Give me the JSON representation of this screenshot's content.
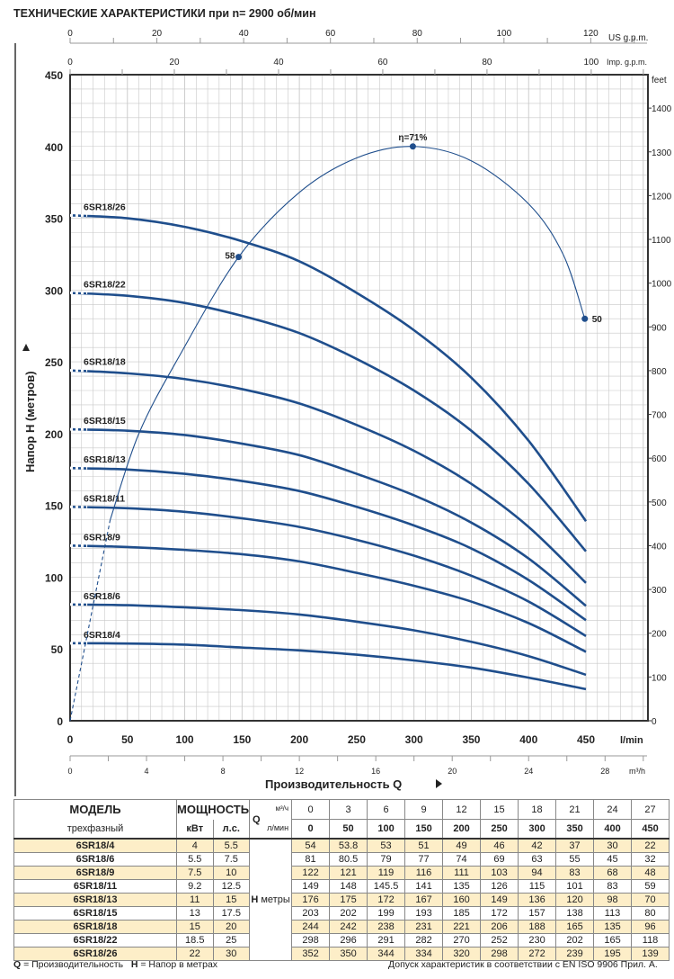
{
  "title": "ТЕХНИЧЕСКИЕ ХАРАКТЕРИСТИКИ при n= 2900 об/мин",
  "chart_data": {
    "type": "line",
    "xlabel": "Производительность Q",
    "ylabel": "Напор H  (метров)",
    "x_unit": "l/min",
    "y_unit_right": "feet",
    "xlim": [
      0,
      504
    ],
    "ylim": [
      0,
      450
    ],
    "x_ticks": [
      0,
      50,
      100,
      150,
      200,
      250,
      300,
      350,
      400,
      450
    ],
    "y_ticks": [
      0,
      50,
      100,
      150,
      200,
      250,
      300,
      350,
      400,
      450
    ],
    "feet_ticks": [
      0,
      100,
      200,
      300,
      400,
      500,
      600,
      700,
      800,
      900,
      1000,
      1100,
      1200,
      1300,
      1400
    ],
    "us_gpm_label": "US g.p.m.",
    "us_gpm_ticks": [
      0,
      20,
      40,
      60,
      80,
      100,
      120
    ],
    "imp_gpm_label": "Imp. g.p.m.",
    "imp_gpm_ticks": [
      0,
      20,
      40,
      60,
      80,
      100
    ],
    "m3h_label": "m³/h",
    "m3h_ticks": [
      0,
      4,
      8,
      12,
      16,
      20,
      24,
      28
    ],
    "grid": true,
    "x": [
      0,
      50,
      100,
      150,
      200,
      250,
      300,
      350,
      400,
      450
    ],
    "series": [
      {
        "name": "6SR18/4",
        "values": [
          54,
          53.8,
          53,
          51,
          49,
          46,
          42,
          37,
          30,
          22
        ]
      },
      {
        "name": "6SR18/6",
        "values": [
          81,
          80.5,
          79,
          77,
          74,
          69,
          63,
          55,
          45,
          32
        ]
      },
      {
        "name": "6SR18/9",
        "values": [
          122,
          121,
          119,
          116,
          111,
          103,
          94,
          83,
          68,
          48
        ]
      },
      {
        "name": "6SR18/11",
        "values": [
          149,
          148,
          145.5,
          141,
          135,
          126,
          115,
          101,
          83,
          59
        ]
      },
      {
        "name": "6SR18/13",
        "values": [
          176,
          175,
          172,
          167,
          160,
          149,
          136,
          120,
          98,
          70
        ]
      },
      {
        "name": "6SR18/15",
        "values": [
          203,
          202,
          199,
          193,
          185,
          172,
          157,
          138,
          113,
          80
        ]
      },
      {
        "name": "6SR18/18",
        "values": [
          244,
          242,
          238,
          231,
          221,
          206,
          188,
          165,
          135,
          96
        ]
      },
      {
        "name": "6SR18/22",
        "values": [
          298,
          296,
          291,
          282,
          270,
          252,
          230,
          202,
          165,
          118
        ]
      },
      {
        "name": "6SR18/26",
        "values": [
          352,
          350,
          344,
          334,
          320,
          298,
          272,
          239,
          195,
          139
        ]
      }
    ],
    "efficiency": {
      "curve_q": [
        0,
        15,
        35,
        60,
        96,
        147,
        200,
        250,
        299,
        350,
        400,
        430,
        449
      ],
      "curve_h": [
        0,
        60,
        140,
        200,
        255,
        323,
        368,
        392,
        400,
        390,
        360,
        325,
        280
      ],
      "points": [
        {
          "q": 147,
          "h": 323,
          "label": "58"
        },
        {
          "q": 299,
          "h": 400,
          "label": "η=71%"
        },
        {
          "q": 449,
          "h": 280,
          "label": "50"
        }
      ]
    }
  },
  "table": {
    "model_header": "МОДЕЛЬ",
    "model_sub": "трехфазный",
    "power_header": "МОЩНОСТЬ",
    "kw": "кВт",
    "hp": "л.с.",
    "q_label": "Q",
    "m3h": "м³/ч",
    "lmin": "л/мин",
    "h_label": "H",
    "h_unit": "метры",
    "m3h_values": [
      "0",
      "3",
      "6",
      "9",
      "12",
      "15",
      "18",
      "21",
      "24",
      "27"
    ],
    "lmin_values": [
      "0",
      "50",
      "100",
      "150",
      "200",
      "250",
      "300",
      "350",
      "400",
      "450"
    ],
    "rows": [
      {
        "model": "6SR18/4",
        "kw": "4",
        "hp": "5.5",
        "h": [
          "54",
          "53.8",
          "53",
          "51",
          "49",
          "46",
          "42",
          "37",
          "30",
          "22"
        ]
      },
      {
        "model": "6SR18/6",
        "kw": "5.5",
        "hp": "7.5",
        "h": [
          "81",
          "80.5",
          "79",
          "77",
          "74",
          "69",
          "63",
          "55",
          "45",
          "32"
        ]
      },
      {
        "model": "6SR18/9",
        "kw": "7.5",
        "hp": "10",
        "h": [
          "122",
          "121",
          "119",
          "116",
          "111",
          "103",
          "94",
          "83",
          "68",
          "48"
        ]
      },
      {
        "model": "6SR18/11",
        "kw": "9.2",
        "hp": "12.5",
        "h": [
          "149",
          "148",
          "145.5",
          "141",
          "135",
          "126",
          "115",
          "101",
          "83",
          "59"
        ]
      },
      {
        "model": "6SR18/13",
        "kw": "11",
        "hp": "15",
        "h": [
          "176",
          "175",
          "172",
          "167",
          "160",
          "149",
          "136",
          "120",
          "98",
          "70"
        ]
      },
      {
        "model": "6SR18/15",
        "kw": "13",
        "hp": "17.5",
        "h": [
          "203",
          "202",
          "199",
          "193",
          "185",
          "172",
          "157",
          "138",
          "113",
          "80"
        ]
      },
      {
        "model": "6SR18/18",
        "kw": "15",
        "hp": "20",
        "h": [
          "244",
          "242",
          "238",
          "231",
          "221",
          "206",
          "188",
          "165",
          "135",
          "96"
        ]
      },
      {
        "model": "6SR18/22",
        "kw": "18.5",
        "hp": "25",
        "h": [
          "298",
          "296",
          "291",
          "282",
          "270",
          "252",
          "230",
          "202",
          "165",
          "118"
        ]
      },
      {
        "model": "6SR18/26",
        "kw": "22",
        "hp": "30",
        "h": [
          "352",
          "350",
          "344",
          "334",
          "320",
          "298",
          "272",
          "239",
          "195",
          "139"
        ]
      }
    ]
  },
  "footer": {
    "legend_q": "Q",
    "legend_q_text": " = Производительность",
    "legend_h": "H",
    "legend_h_text": " = Напор в метрах",
    "tolerance": "Допуск характеристик в соответствии с EN ISO 9906 Прил.  А."
  },
  "colors": {
    "curve": "#1f4e8c",
    "grid": "#c8c8c8",
    "cream": "#fdeec8"
  }
}
